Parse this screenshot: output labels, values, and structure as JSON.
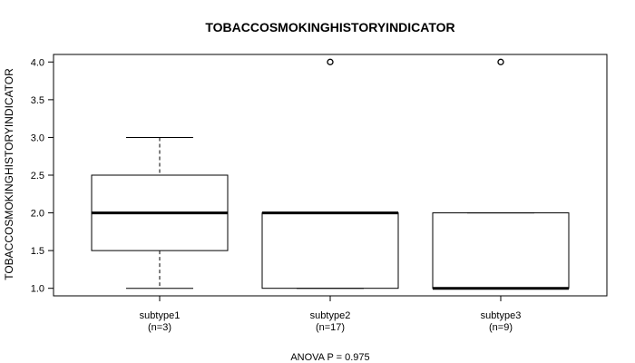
{
  "chart_data": {
    "type": "boxplot",
    "title": "TOBACCOSMOKINGHISTORYINDICATOR",
    "ylabel": "TOBACCOSMOKINGHISTORYINDICATOR",
    "xlabel": "",
    "ylim": [
      0.9,
      4.1
    ],
    "yticks": [
      "1.0",
      "1.5",
      "2.0",
      "2.5",
      "3.0",
      "3.5",
      "4.0"
    ],
    "footer": "ANOVA P = 0.975",
    "groups": [
      {
        "name": "subtype1",
        "n_label": "(n=3)",
        "whisker_low": 1.0,
        "q1": 1.5,
        "median": 2.0,
        "q3": 2.5,
        "whisker_high": 3.0,
        "outliers": []
      },
      {
        "name": "subtype2",
        "n_label": "(n=17)",
        "whisker_low": 1.0,
        "q1": 1.0,
        "median": 2.0,
        "q3": 2.0,
        "whisker_high": 2.0,
        "outliers": [
          4.0
        ]
      },
      {
        "name": "subtype3",
        "n_label": "(n=9)",
        "whisker_low": 1.0,
        "q1": 1.0,
        "median": 1.0,
        "q3": 2.0,
        "whisker_high": 2.0,
        "outliers": [
          4.0
        ]
      }
    ]
  }
}
